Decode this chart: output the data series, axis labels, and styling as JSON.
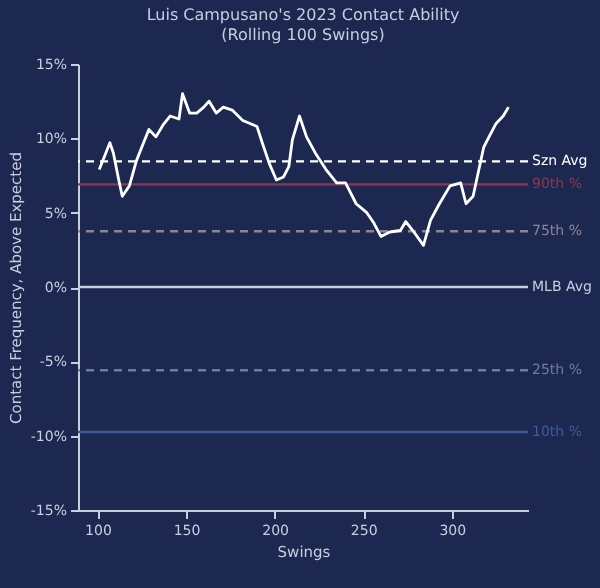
{
  "chart_data": {
    "type": "line",
    "title": "Luis Campusano's 2023 Contact Ability\n(Rolling 100 Swings)",
    "xlabel": "Swings",
    "ylabel": "Contact Frequency, Above Expected",
    "xlim": [
      89,
      343
    ],
    "xticks": [
      100,
      150,
      200,
      250,
      300
    ],
    "ylim": [
      -15,
      15
    ],
    "yticks": [
      {
        "value": -15,
        "label": "-15%"
      },
      {
        "value": -10,
        "label": "-10%"
      },
      {
        "value": -5,
        "label": "-5%"
      },
      {
        "value": 0,
        "label": "0%"
      },
      {
        "value": 5,
        "label": "5%"
      },
      {
        "value": 10,
        "label": "10%"
      },
      {
        "value": 15,
        "label": "15%"
      }
    ],
    "grid": false,
    "marker": "none",
    "line_style": "solid",
    "series": [
      {
        "color": "#ffffff",
        "x": [
          101,
          107,
          109,
          112,
          114,
          118,
          122,
          126,
          129,
          133,
          137,
          141,
          146,
          148,
          152,
          156,
          160,
          163,
          167,
          171,
          176,
          182,
          190,
          193,
          197,
          201,
          205,
          208,
          210,
          214,
          218,
          223,
          229,
          235,
          240,
          246,
          252,
          256,
          260,
          265,
          271,
          274,
          278,
          284,
          288,
          293,
          299,
          305,
          308,
          312,
          314,
          318,
          321,
          325,
          329,
          332
        ],
        "values": [
          7.9,
          9.7,
          9.0,
          7.2,
          6.1,
          6.8,
          8.5,
          9.7,
          10.6,
          10.1,
          10.9,
          11.5,
          11.3,
          13.0,
          11.7,
          11.7,
          12.1,
          12.5,
          11.7,
          12.1,
          11.9,
          11.2,
          10.8,
          9.7,
          8.3,
          7.2,
          7.4,
          8.1,
          9.9,
          11.5,
          10.1,
          9.0,
          7.9,
          7.0,
          7.0,
          5.6,
          5.0,
          4.3,
          3.4,
          3.7,
          3.8,
          4.4,
          3.8,
          2.8,
          4.5,
          5.6,
          6.8,
          7.0,
          5.6,
          6.1,
          7.2,
          9.4,
          10.1,
          11.0,
          11.5,
          12.1
        ]
      }
    ],
    "ref_lines": [
      {
        "axis": "y",
        "value": 8.45,
        "label": "Szn Avg",
        "color": "#ffffff",
        "line_style": "dashed"
      },
      {
        "axis": "y",
        "value": 6.9,
        "label": "90th %",
        "color": "#8a3a4c",
        "line_style": "solid"
      },
      {
        "axis": "y",
        "value": 3.75,
        "label": "75th %",
        "color": "#8e8496",
        "line_style": "dashed"
      },
      {
        "axis": "y",
        "value": 0,
        "label": "MLB Avg",
        "color": "#c9cde0",
        "line_style": "solid"
      },
      {
        "axis": "y",
        "value": -5.6,
        "label": "25th %",
        "color": "#6f7aa6",
        "line_style": "dashed"
      },
      {
        "axis": "y",
        "value": -9.75,
        "label": "10th %",
        "color": "#3e5a9a",
        "line_style": "solid"
      }
    ]
  }
}
